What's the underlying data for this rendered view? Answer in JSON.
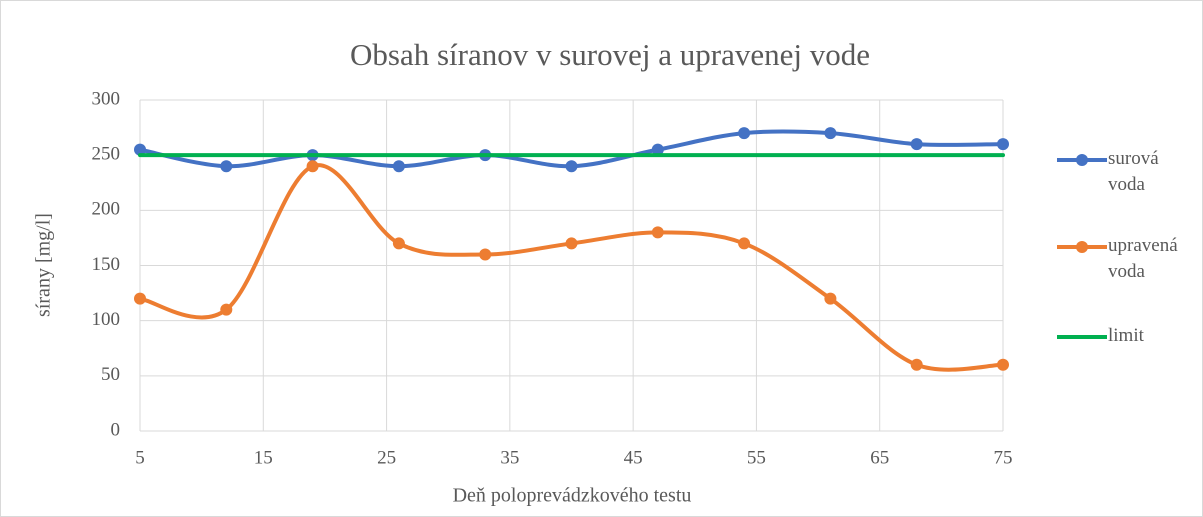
{
  "chart_data": {
    "type": "line",
    "title": "Obsah síranov v surovej a upravenej vode",
    "x_label": "Deň poloprevádzkového testu",
    "y_label": "sírany [mg/l]",
    "x": [
      5,
      12,
      19,
      26,
      33,
      40,
      47,
      54,
      61,
      68,
      75
    ],
    "series": [
      {
        "name": "surová voda",
        "color": "#4472c4",
        "marker": true,
        "values": [
          255,
          240,
          250,
          240,
          250,
          240,
          255,
          270,
          270,
          260,
          260
        ]
      },
      {
        "name": "upravená voda",
        "color": "#ed7d31",
        "marker": true,
        "values": [
          120,
          110,
          240,
          170,
          160,
          170,
          180,
          170,
          120,
          60,
          60
        ]
      },
      {
        "name": "limit",
        "color": "#00b050",
        "marker": false,
        "values": [
          250,
          250,
          250,
          250,
          250,
          250,
          250,
          250,
          250,
          250,
          250
        ]
      }
    ],
    "xlim": [
      5,
      75
    ],
    "xticks": [
      5,
      15,
      25,
      35,
      45,
      55,
      65,
      75
    ],
    "ylim": [
      0,
      300
    ],
    "yticks": [
      0,
      50,
      100,
      150,
      200,
      250,
      300
    ],
    "grid": true,
    "smooth": true,
    "legend": "right"
  }
}
